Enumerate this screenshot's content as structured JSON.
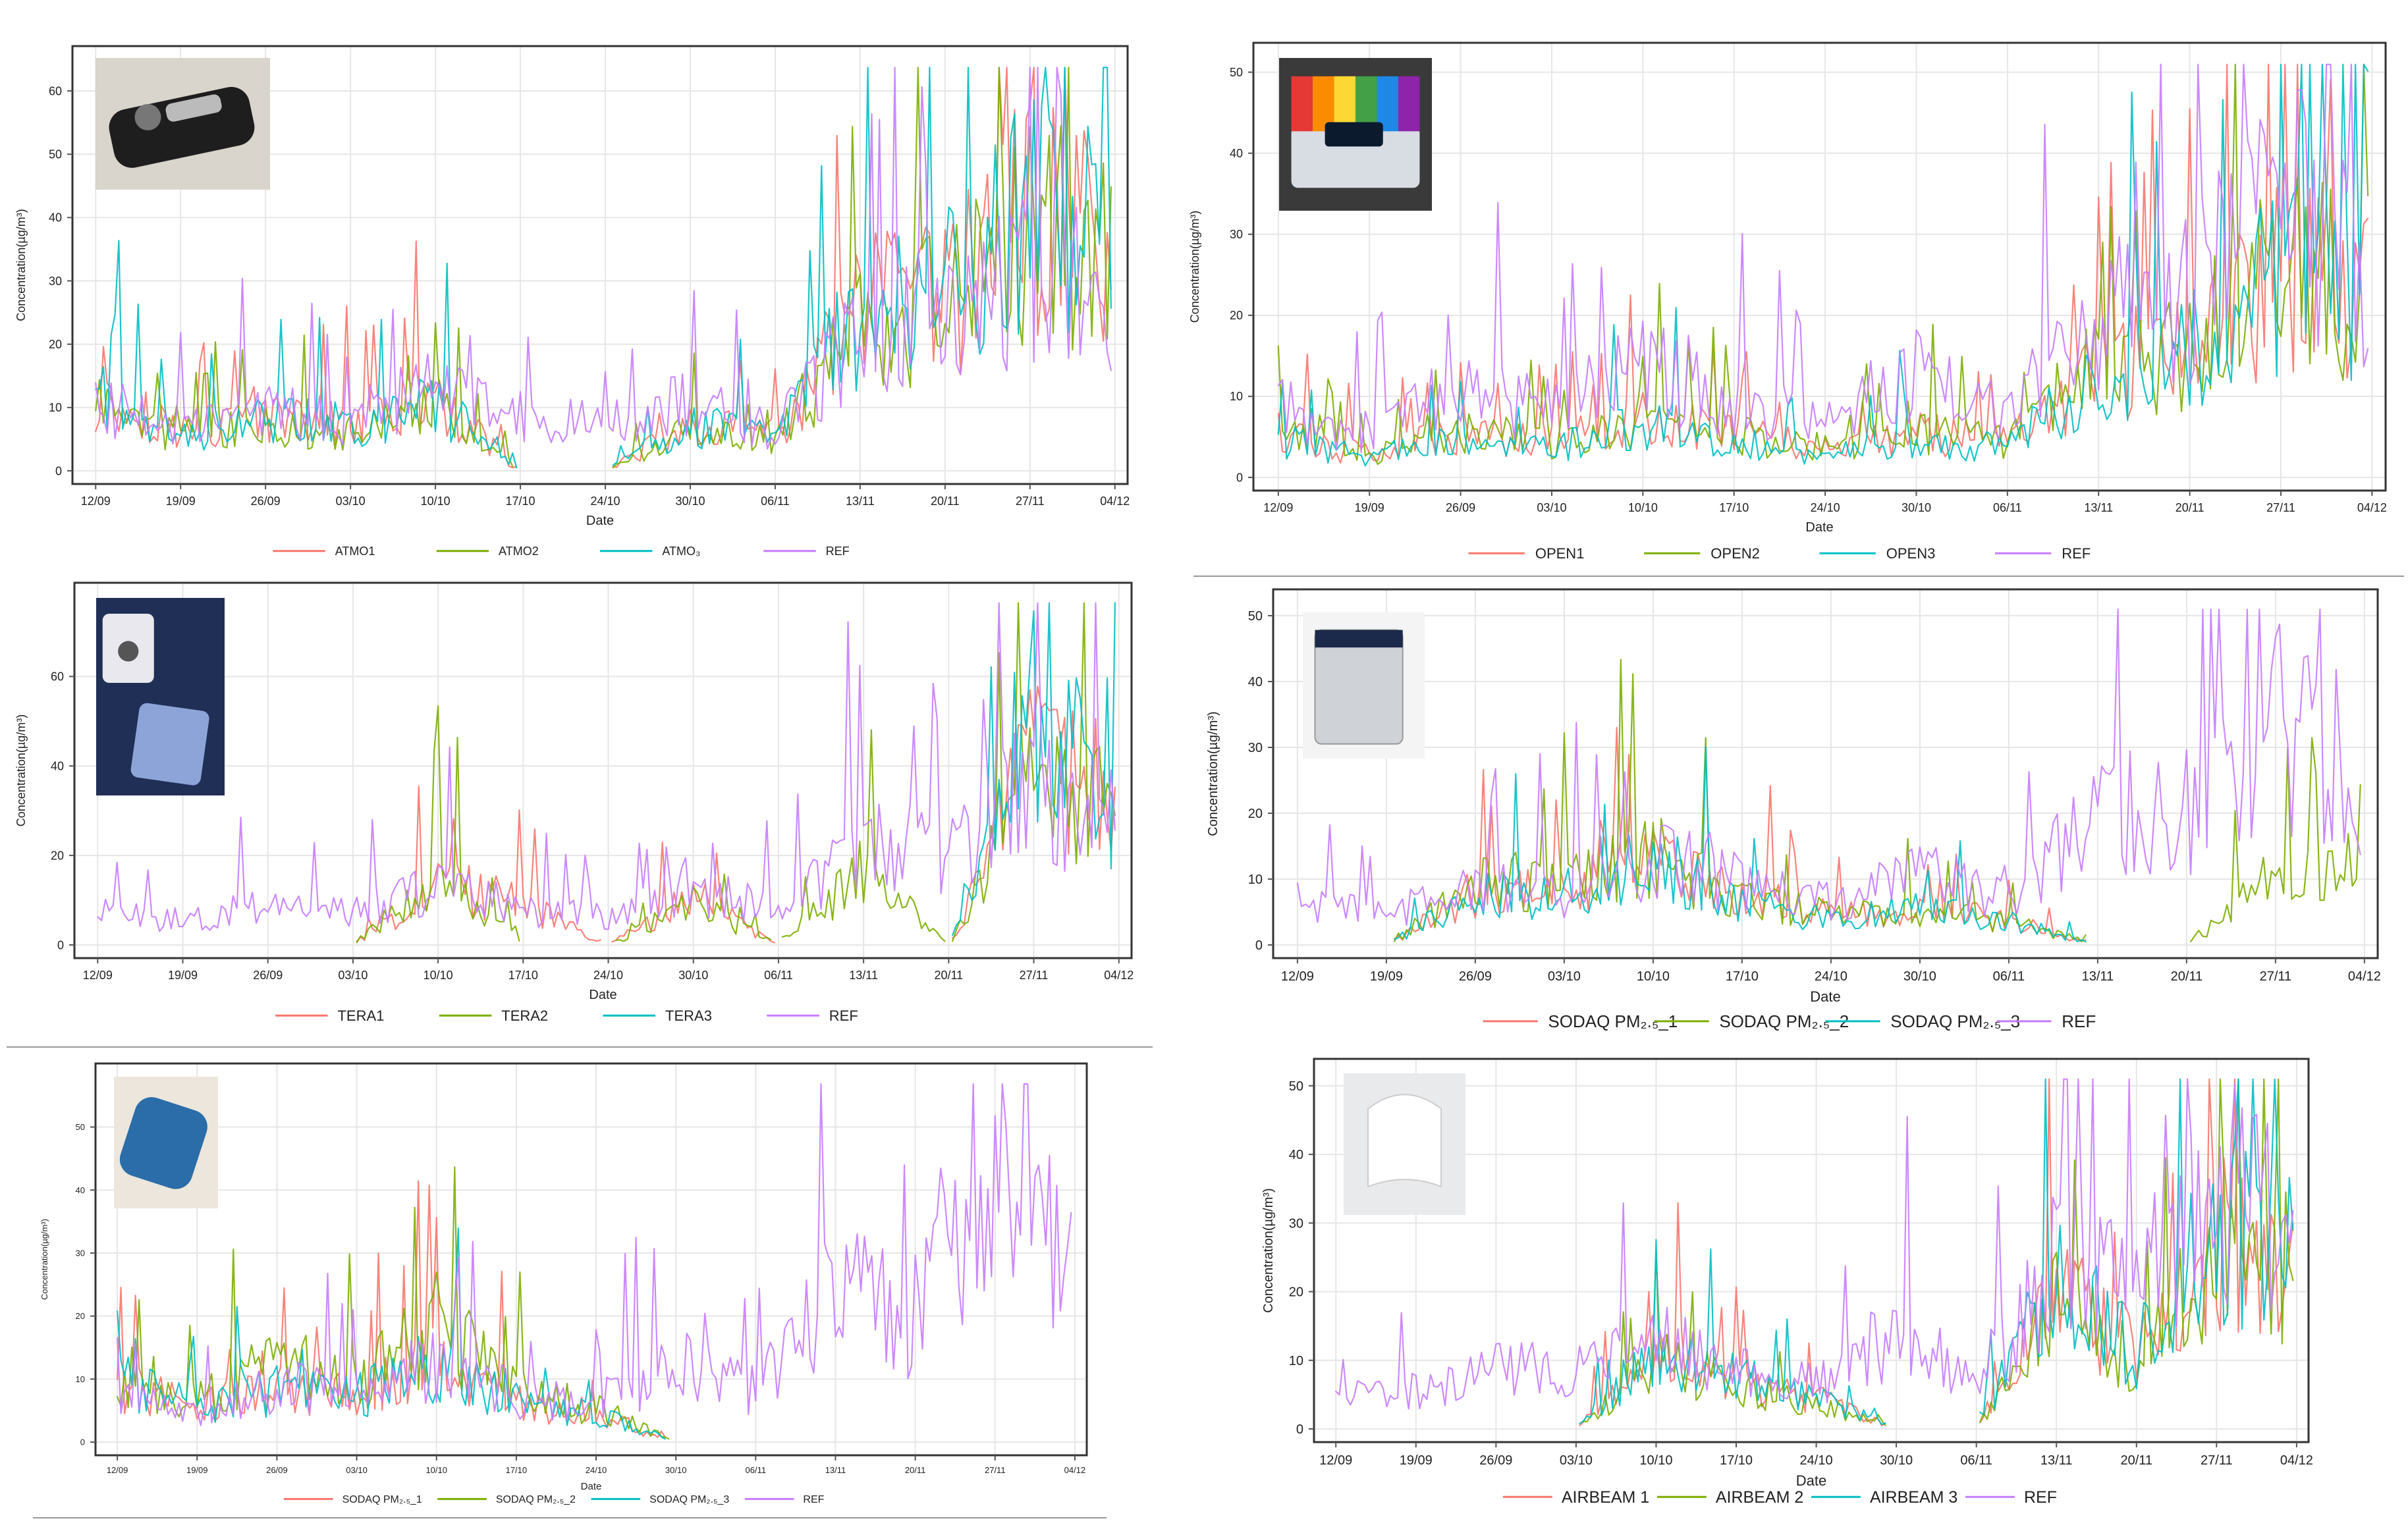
{
  "colors": {
    "series1": "#f8766d",
    "series2": "#7cae00",
    "series3": "#00bfc4",
    "ref": "#c77cff"
  },
  "date_ticks": [
    "12/09",
    "19/09",
    "26/09",
    "03/10",
    "10/10",
    "17/10",
    "24/10",
    "30/10",
    "06/11",
    "13/11",
    "20/11",
    "27/11",
    "04/12"
  ],
  "chart_data": [
    {
      "type": "line",
      "panel": "atmo",
      "photo": "device-photo-atmotube",
      "xlabel": "Date",
      "ylabel": "Concentration(µg/m³)",
      "ylim": [
        0,
        65
      ],
      "yticks": [
        0,
        10,
        20,
        30,
        40,
        50,
        60
      ],
      "x": [
        "12/09",
        "19/09",
        "26/09",
        "03/10",
        "10/10",
        "17/10",
        "24/10",
        "30/10",
        "06/11",
        "13/11",
        "20/11",
        "27/11",
        "04/12"
      ],
      "series": [
        {
          "name": "ATMO1",
          "values": [
            12,
            7,
            9,
            8,
            12,
            0,
            0,
            8,
            6,
            28,
            30,
            45,
            40
          ]
        },
        {
          "name": "ATMO2",
          "values": [
            11,
            6,
            8,
            7,
            11,
            0,
            0,
            7,
            5,
            26,
            28,
            42,
            38
          ]
        },
        {
          "name": "ATMO₃",
          "values": [
            13,
            6,
            9,
            8,
            12,
            0,
            0,
            8,
            6,
            29,
            31,
            46,
            41
          ]
        },
        {
          "name": "REF",
          "values": [
            12,
            7,
            10,
            9,
            15,
            10,
            8,
            12,
            7,
            24,
            25,
            36,
            28
          ]
        }
      ]
    },
    {
      "type": "line",
      "panel": "open",
      "photo": "device-photo-openaq",
      "xlabel": "Date",
      "ylabel": "Concentration(µg/m³)",
      "ylim": [
        0,
        52
      ],
      "yticks": [
        0,
        10,
        20,
        30,
        40,
        50
      ],
      "x": [
        "12/09",
        "19/09",
        "26/09",
        "03/10",
        "10/10",
        "17/10",
        "24/10",
        "30/10",
        "06/11",
        "13/11",
        "20/11",
        "27/11",
        "04/12"
      ],
      "series": [
        {
          "name": "OPEN1",
          "values": [
            6,
            3,
            6,
            5,
            8,
            6,
            4,
            6,
            5,
            15,
            18,
            28,
            26
          ]
        },
        {
          "name": "OPEN2",
          "values": [
            6,
            3,
            6,
            5,
            8,
            6,
            4,
            6,
            5,
            15,
            18,
            28,
            26
          ]
        },
        {
          "name": "OPEN3",
          "values": [
            5,
            3,
            5,
            4,
            7,
            5,
            3,
            5,
            4,
            14,
            17,
            27,
            25
          ]
        },
        {
          "name": "REF",
          "values": [
            10,
            6,
            12,
            9,
            15,
            11,
            8,
            14,
            9,
            22,
            24,
            38,
            28
          ]
        }
      ]
    },
    {
      "type": "line",
      "panel": "tera",
      "photo": "device-photo-tera",
      "xlabel": "Date",
      "ylabel": "Concentration(µg/m³)",
      "ylim": [
        0,
        78
      ],
      "yticks": [
        0,
        20,
        40,
        60
      ],
      "x": [
        "12/09",
        "19/09",
        "26/09",
        "03/10",
        "10/10",
        "17/10",
        "24/10",
        "30/10",
        "06/11",
        "13/11",
        "20/11",
        "27/11",
        "04/12"
      ],
      "series": [
        {
          "name": "TERA1",
          "values": [
            0,
            0,
            0,
            0,
            15,
            10,
            0,
            12,
            0,
            0,
            0,
            45,
            36
          ]
        },
        {
          "name": "TERA2",
          "values": [
            0,
            0,
            0,
            0,
            18,
            0,
            0,
            10,
            0,
            18,
            0,
            40,
            32
          ]
        },
        {
          "name": "TERA3",
          "values": [
            0,
            0,
            0,
            0,
            0,
            0,
            0,
            0,
            0,
            0,
            0,
            60,
            30
          ]
        },
        {
          "name": "REF",
          "values": [
            8,
            6,
            10,
            8,
            15,
            9,
            7,
            14,
            8,
            25,
            22,
            40,
            30
          ]
        }
      ]
    },
    {
      "type": "line",
      "panel": "sodaq1",
      "photo": "device-photo-sodaq-box",
      "xlabel": "Date",
      "ylabel": "Concentration(µg/m³)",
      "ylim": [
        0,
        52
      ],
      "yticks": [
        0,
        10,
        20,
        30,
        40,
        50
      ],
      "x": [
        "12/09",
        "19/09",
        "26/09",
        "03/10",
        "10/10",
        "17/10",
        "24/10",
        "30/10",
        "06/11",
        "13/11",
        "20/11",
        "27/11",
        "04/12"
      ],
      "series": [
        {
          "name": "SODAQ PM₂.₅_1",
          "values": [
            0,
            0,
            9,
            10,
            14,
            8,
            5,
            6,
            4,
            0,
            0,
            0,
            0
          ]
        },
        {
          "name": "SODAQ PM₂.₅_2",
          "values": [
            0,
            0,
            10,
            11,
            15,
            8,
            5,
            6,
            4,
            0,
            0,
            12,
            14
          ]
        },
        {
          "name": "SODAQ PM₂.₅_3",
          "values": [
            0,
            0,
            8,
            9,
            15,
            7,
            4,
            6,
            4,
            0,
            0,
            0,
            0
          ]
        },
        {
          "name": "REF",
          "values": [
            7,
            5,
            10,
            9,
            15,
            10,
            7,
            12,
            7,
            24,
            22,
            38,
            28
          ]
        }
      ]
    },
    {
      "type": "line",
      "panel": "sodaq2",
      "photo": "device-photo-sodaq-blue",
      "xlabel": "Date",
      "ylabel": "Concentration(µg/m³)",
      "ylim": [
        0,
        58
      ],
      "yticks": [
        0,
        10,
        20,
        30,
        40,
        50
      ],
      "x": [
        "12/09",
        "19/09",
        "26/09",
        "03/10",
        "10/10",
        "17/10",
        "24/10",
        "30/10",
        "06/11",
        "13/11",
        "20/11",
        "27/11",
        "04/12"
      ],
      "series": [
        {
          "name": "SODAQ PM₂.₅_1",
          "values": [
            10,
            6,
            10,
            8,
            15,
            7,
            5,
            0,
            0,
            0,
            0,
            0,
            0
          ]
        },
        {
          "name": "SODAQ PM₂.₅_2",
          "values": [
            12,
            8,
            14,
            10,
            20,
            9,
            6,
            0,
            0,
            0,
            0,
            0,
            0
          ]
        },
        {
          "name": "SODAQ PM₂.₅_3",
          "values": [
            11,
            6,
            9,
            8,
            14,
            7,
            5,
            0,
            0,
            0,
            0,
            0,
            0
          ]
        },
        {
          "name": "REF",
          "values": [
            8,
            5,
            10,
            8,
            14,
            8,
            7,
            14,
            9,
            26,
            22,
            42,
            30
          ]
        }
      ]
    },
    {
      "type": "line",
      "panel": "airbeam",
      "photo": "device-photo-airbeam",
      "xlabel": "Date",
      "ylabel": "Concentration(µg/m³)",
      "ylim": [
        0,
        52
      ],
      "yticks": [
        0,
        10,
        20,
        30,
        40,
        50
      ],
      "x": [
        "12/09",
        "19/09",
        "26/09",
        "03/10",
        "10/10",
        "17/10",
        "24/10",
        "30/10",
        "06/11",
        "13/11",
        "20/11",
        "27/11",
        "04/12"
      ],
      "series": [
        {
          "name": "AIRBEAM 1",
          "values": [
            0,
            0,
            0,
            0,
            12,
            8,
            5,
            0,
            0,
            22,
            12,
            30,
            28
          ]
        },
        {
          "name": "AIRBEAM 2",
          "values": [
            0,
            0,
            0,
            0,
            11,
            7,
            4,
            0,
            0,
            20,
            10,
            28,
            26
          ]
        },
        {
          "name": "AIRBEAM 3",
          "values": [
            0,
            0,
            0,
            0,
            13,
            8,
            5,
            0,
            0,
            24,
            12,
            32,
            29
          ]
        },
        {
          "name": "REF",
          "values": [
            8,
            6,
            10,
            9,
            14,
            9,
            7,
            16,
            8,
            26,
            22,
            40,
            30
          ]
        }
      ]
    }
  ]
}
